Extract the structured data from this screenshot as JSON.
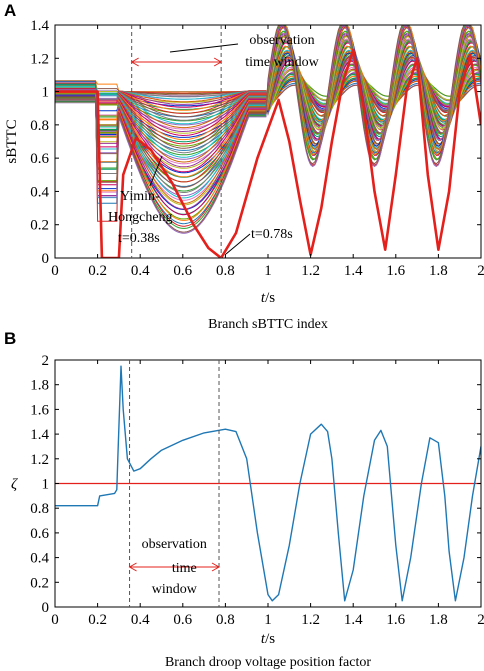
{
  "chart_data": [
    {
      "panel": "A",
      "type": "line",
      "xlabel": "t/s",
      "ylabel": "sBTTC",
      "caption": "Branch sBTTC index",
      "xlim": [
        0,
        2
      ],
      "ylim": [
        0,
        1.4
      ],
      "xticks": [
        0,
        0.2,
        0.4,
        0.6,
        0.8,
        1,
        1.2,
        1.4,
        1.6,
        1.8,
        2
      ],
      "yticks": [
        0,
        0.2,
        0.4,
        0.6,
        0.8,
        1,
        1.2,
        1.4
      ],
      "grid": false,
      "annotations": {
        "observation_label_line1": "observation",
        "observation_label_line2": "time window",
        "branch_label_line1": "Yimin-",
        "branch_label_line2": "Hongcheng",
        "t_start_label": "t=0.38s",
        "t_end_label": "t=0.78s",
        "window_start": 0.36,
        "window_end": 0.78
      },
      "highlighted_series": {
        "color": "#e3201b",
        "x": [
          0,
          0.2,
          0.22,
          0.3,
          0.32,
          0.38,
          0.45,
          0.55,
          0.65,
          0.72,
          0.78,
          0.85,
          0.95,
          1.05,
          1.1,
          1.15,
          1.2,
          1.25,
          1.3,
          1.35,
          1.4,
          1.45,
          1.5,
          1.55,
          1.6,
          1.65,
          1.7,
          1.75,
          1.8,
          1.85,
          1.9,
          1.95,
          2.0
        ],
        "y": [
          1.0,
          1.0,
          0.0,
          0.0,
          0.5,
          0.72,
          0.65,
          0.45,
          0.2,
          0.06,
          0.0,
          0.15,
          0.6,
          0.95,
          0.7,
          0.35,
          0.02,
          0.3,
          0.7,
          1.05,
          1.25,
          0.9,
          0.4,
          0.05,
          0.5,
          1.0,
          1.2,
          0.5,
          0.05,
          0.4,
          1.0,
          1.22,
          0.8
        ]
      },
      "other_series_count": 70
    },
    {
      "panel": "B",
      "type": "line",
      "xlabel": "t/s",
      "ylabel": "ζ",
      "caption": "Branch droop voltage position factor",
      "xlim": [
        0,
        2
      ],
      "ylim": [
        0,
        2
      ],
      "xticks": [
        0,
        0.2,
        0.4,
        0.6,
        0.8,
        1,
        1.2,
        1.4,
        1.6,
        1.8,
        2
      ],
      "yticks": [
        0,
        0.2,
        0.4,
        0.6,
        0.8,
        1,
        1.2,
        1.4,
        1.6,
        1.8,
        2
      ],
      "grid": false,
      "annotations": {
        "observation_label_line1": "observation",
        "observation_label_line2": "time",
        "observation_label_line3": "window",
        "window_start": 0.35,
        "window_end": 0.77
      },
      "reference_line": {
        "y": 1.0,
        "color": "#e3201b"
      },
      "series": [
        {
          "color": "#1f77b4",
          "x": [
            0,
            0.2,
            0.21,
            0.28,
            0.29,
            0.295,
            0.31,
            0.32,
            0.34,
            0.37,
            0.4,
            0.45,
            0.5,
            0.6,
            0.7,
            0.8,
            0.85,
            0.9,
            0.95,
            1.0,
            1.02,
            1.05,
            1.1,
            1.15,
            1.2,
            1.25,
            1.28,
            1.3,
            1.33,
            1.36,
            1.4,
            1.45,
            1.5,
            1.53,
            1.56,
            1.6,
            1.63,
            1.67,
            1.72,
            1.76,
            1.8,
            1.83,
            1.85,
            1.88,
            1.92,
            1.96,
            2.0
          ],
          "y": [
            0.82,
            0.82,
            0.9,
            0.92,
            0.95,
            1.2,
            1.95,
            1.6,
            1.2,
            1.1,
            1.12,
            1.2,
            1.27,
            1.35,
            1.41,
            1.44,
            1.42,
            1.2,
            0.6,
            0.1,
            0.05,
            0.1,
            0.5,
            1.0,
            1.4,
            1.48,
            1.42,
            1.2,
            0.6,
            0.05,
            0.3,
            0.9,
            1.35,
            1.43,
            1.3,
            0.5,
            0.05,
            0.4,
            1.0,
            1.37,
            1.33,
            0.9,
            0.45,
            0.05,
            0.4,
            0.9,
            1.3
          ]
        }
      ]
    }
  ]
}
